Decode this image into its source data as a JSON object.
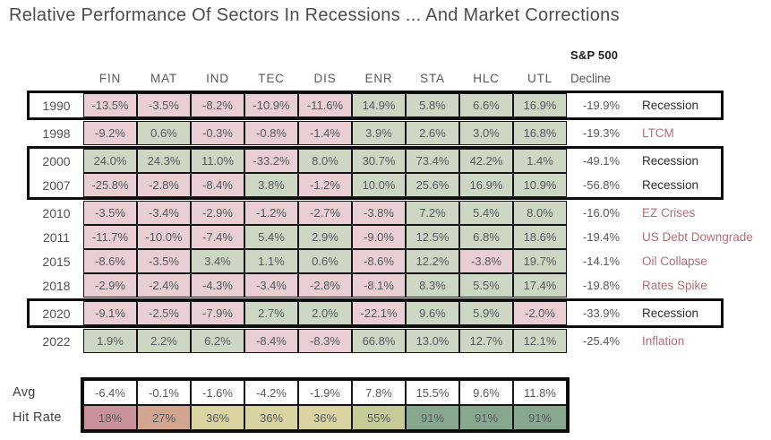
{
  "title": "Relative Performance Of Sectors In Recessions ... And Market Corrections",
  "chart_data": {
    "type": "heatmap",
    "title": "Relative Performance Of Sectors In Recessions ... And Market Corrections",
    "sp500_header": "S&P 500",
    "decline_header": "Decline",
    "columns": [
      "FIN",
      "MAT",
      "IND",
      "TEC",
      "DIS",
      "ENR",
      "STA",
      "HLC",
      "UTL"
    ],
    "rows": [
      {
        "year": "1990",
        "values": [
          "-13.5%",
          "-3.5%",
          "-8.2%",
          "-10.9%",
          "-11.6%",
          "14.9%",
          "5.8%",
          "6.6%",
          "16.9%"
        ],
        "decline": "-19.9%",
        "label": "Recession",
        "label_style": "dark",
        "group": "g1"
      },
      {
        "year": "1998",
        "values": [
          "-9.2%",
          "0.6%",
          "-0.3%",
          "-0.8%",
          "-1.4%",
          "3.9%",
          "2.6%",
          "3.0%",
          "16.8%"
        ],
        "decline": "-19.3%",
        "label": "LTCM",
        "label_style": "red",
        "group": null
      },
      {
        "year": "2000",
        "values": [
          "24.0%",
          "24.3%",
          "11.0%",
          "-33.2%",
          "8.0%",
          "30.7%",
          "73.4%",
          "42.2%",
          "1.4%"
        ],
        "decline": "-49.1%",
        "label": "Recession",
        "label_style": "dark",
        "group": "g2"
      },
      {
        "year": "2007",
        "values": [
          "-25.8%",
          "-2.8%",
          "-8.4%",
          "3.8%",
          "-1.2%",
          "10.0%",
          "25.6%",
          "16.9%",
          "10.9%"
        ],
        "decline": "-56.8%",
        "label": "Recession",
        "label_style": "dark",
        "group": "g2"
      },
      {
        "year": "2010",
        "values": [
          "-3.5%",
          "-3.4%",
          "-2.9%",
          "-1.2%",
          "-2.7%",
          "-3.8%",
          "7.2%",
          "5.4%",
          "8.0%"
        ],
        "decline": "-16.0%",
        "label": "EZ Crises",
        "label_style": "red",
        "group": null
      },
      {
        "year": "2011",
        "values": [
          "-11.7%",
          "-10.0%",
          "-7.4%",
          "5.4%",
          "2.9%",
          "-9.0%",
          "12.5%",
          "6.8%",
          "18.6%"
        ],
        "decline": "-19.4%",
        "label": "US Debt Downgrade",
        "label_style": "red",
        "group": null
      },
      {
        "year": "2015",
        "values": [
          "-8.6%",
          "-3.5%",
          "3.4%",
          "1.1%",
          "0.6%",
          "-8.6%",
          "12.2%",
          "-3.8%",
          "19.7%"
        ],
        "decline": "-14.1%",
        "label": "Oil Collapse",
        "label_style": "red",
        "group": null
      },
      {
        "year": "2018",
        "values": [
          "-2.9%",
          "-2.4%",
          "-4.3%",
          "-3.4%",
          "-2.8%",
          "-8.1%",
          "8.3%",
          "5.5%",
          "17.4%"
        ],
        "decline": "-19.8%",
        "label": "Rates Spike",
        "label_style": "red",
        "group": null
      },
      {
        "year": "2020",
        "values": [
          "-9.1%",
          "-2.5%",
          "-7.9%",
          "2.7%",
          "2.0%",
          "-22.1%",
          "9.6%",
          "5.9%",
          "-2.0%"
        ],
        "decline": "-33.9%",
        "label": "Recession",
        "label_style": "dark",
        "group": "g3"
      },
      {
        "year": "2022",
        "values": [
          "1.9%",
          "2.2%",
          "6.2%",
          "-8.4%",
          "-8.3%",
          "66.8%",
          "13.0%",
          "12.7%",
          "12.1%"
        ],
        "decline": "-25.4%",
        "label": "Inflation",
        "label_style": "red",
        "group": null
      }
    ],
    "summary": {
      "avg_label": "Avg",
      "hit_rate_label": "Hit Rate",
      "avg": [
        "-6.4%",
        "-0.1%",
        "-1.6%",
        "-4.2%",
        "-1.9%",
        "7.8%",
        "15.5%",
        "9.6%",
        "11.8%"
      ],
      "hit_rate": [
        "18%",
        "27%",
        "36%",
        "36%",
        "36%",
        "55%",
        "91%",
        "91%",
        "91%"
      ],
      "hit_rate_colors": [
        "#c9929b",
        "#d2a591",
        "#dad4a2",
        "#dad4a2",
        "#dad4a2",
        "#c5ca97",
        "#87a88e",
        "#87a88e",
        "#87a88e"
      ]
    },
    "colors": {
      "positive_cell": "#cdd7c4",
      "negative_cell": "#e9ced4",
      "recession_label": "#2d2d2d",
      "event_label_red": "#b56d76",
      "cell_text": "#565a5c",
      "border": "#0d0d0d"
    }
  }
}
